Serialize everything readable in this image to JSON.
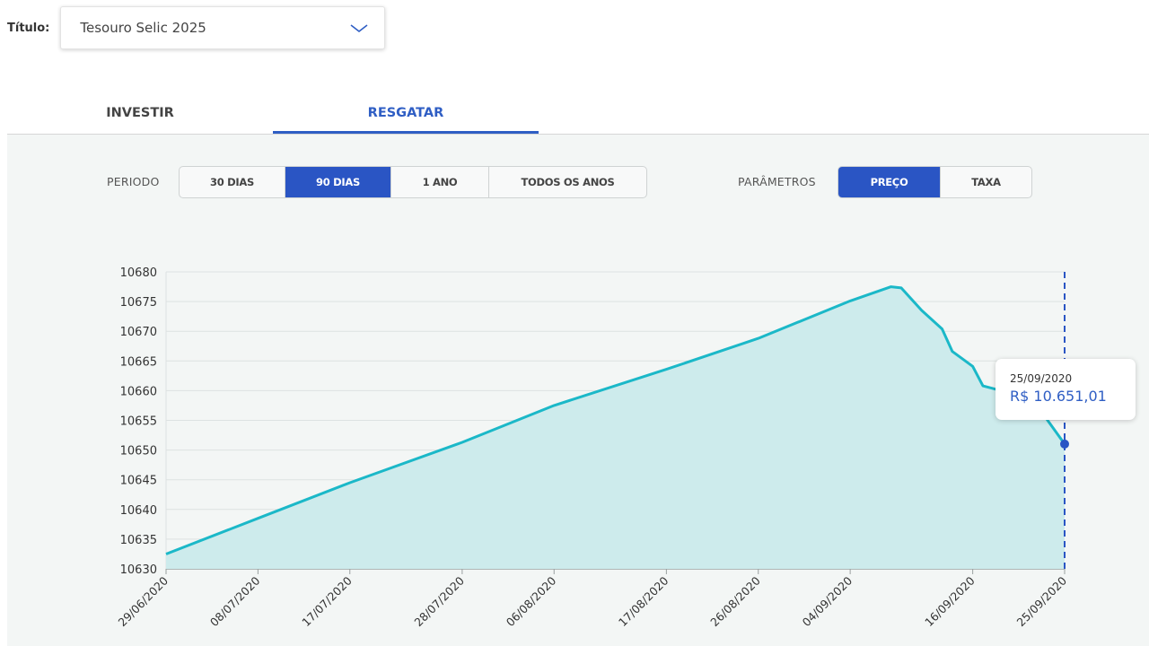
{
  "header": {
    "titulo_label": "Título:",
    "selected_title": "Tesouro Selic 2025"
  },
  "tabs": [
    {
      "label": "INVESTIR",
      "active": false
    },
    {
      "label": "RESGATAR",
      "active": true
    }
  ],
  "controls": {
    "periodo_label": "PERIODO",
    "periodo_options": [
      {
        "label": "30 DIAS",
        "active": false
      },
      {
        "label": "90 DIAS",
        "active": true
      },
      {
        "label": "1 ANO",
        "active": false
      },
      {
        "label": "TODOS OS ANOS",
        "active": false
      }
    ],
    "parametros_label": "PARÂMETROS",
    "parametros_options": [
      {
        "label": "PREÇO",
        "active": true
      },
      {
        "label": "TAXA",
        "active": false
      }
    ]
  },
  "tooltip": {
    "date": "25/09/2020",
    "value": "R$ 10.651,01"
  },
  "colors": {
    "accent": "#2a55c4",
    "tab_active": "#2f5ec4",
    "line": "#1bb8c8",
    "area": "#cdebec",
    "panel_bg": "#f3f6f5"
  },
  "chart_data": {
    "type": "area",
    "title": "",
    "xlabel": "",
    "ylabel": "",
    "ylim": [
      10630,
      10680
    ],
    "yticks": [
      10630,
      10635,
      10640,
      10645,
      10650,
      10655,
      10660,
      10665,
      10670,
      10675,
      10680
    ],
    "xlim": [
      "2020-06-29",
      "2020-09-25"
    ],
    "xticks": [
      "29/06/2020",
      "08/07/2020",
      "17/07/2020",
      "28/07/2020",
      "06/08/2020",
      "17/08/2020",
      "26/08/2020",
      "04/09/2020",
      "16/09/2020",
      "25/09/2020"
    ],
    "grid": true,
    "series": [
      {
        "x": [
          "2020-06-29",
          "2020-07-08",
          "2020-07-17",
          "2020-07-28",
          "2020-08-06",
          "2020-08-17",
          "2020-08-26",
          "2020-09-04",
          "2020-09-08",
          "2020-09-09",
          "2020-09-11",
          "2020-09-13",
          "2020-09-14",
          "2020-09-16",
          "2020-09-17",
          "2020-09-19",
          "2020-09-21",
          "2020-09-23",
          "2020-09-25"
        ],
        "values": [
          10632.5,
          10638.5,
          10644.5,
          10651.3,
          10657.5,
          10663.6,
          10668.8,
          10675.1,
          10677.5,
          10677.3,
          10673.5,
          10670.4,
          10666.6,
          10664.1,
          10660.8,
          10659.9,
          10658.4,
          10655.8,
          10651.01
        ]
      }
    ],
    "highlight": {
      "x": "2020-09-25",
      "value": 10651.01
    }
  }
}
